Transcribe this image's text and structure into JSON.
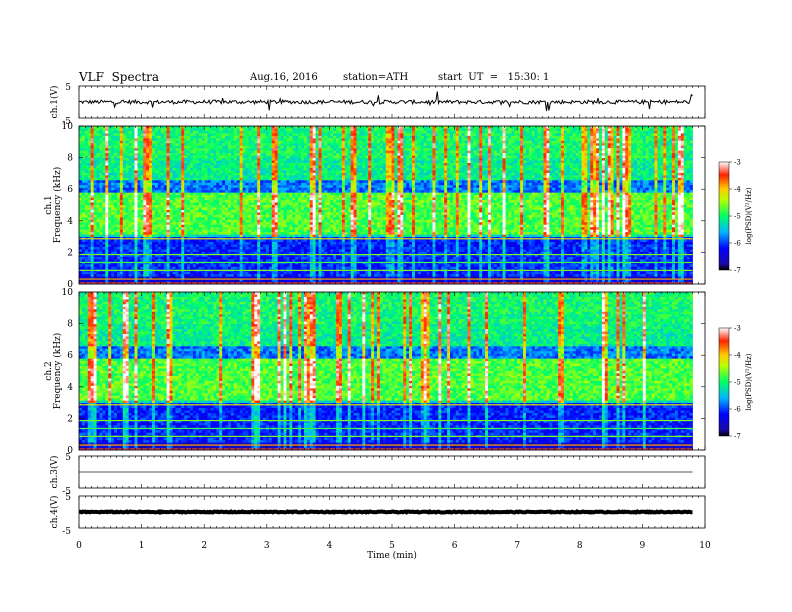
{
  "header": {
    "title": "VLF  Spectra",
    "date": "Aug.16, 2016",
    "station": "station=ATH",
    "start": "start  UT  =   15:30: 1"
  },
  "chart_data": [
    {
      "type": "line",
      "title": "",
      "ylabel": "ch.1(V)",
      "ylim": [
        -5,
        5
      ],
      "ytick_labels": [
        "5",
        "-5"
      ],
      "trace_mean": 0,
      "trace_noise": 0.6,
      "spikes": true
    },
    {
      "type": "heatmap",
      "ylabel": "Frequency  (kHz)",
      "channel_label": "ch.1",
      "xlim": [
        0,
        9.8
      ],
      "ylim": [
        0,
        10
      ],
      "ytick_labels": [
        "0",
        "2",
        "4",
        "6",
        "8",
        "10"
      ],
      "colorbar": {
        "label": "log(PSD)(V²/Hz)",
        "range": [
          -7,
          -3
        ],
        "tick_labels": [
          "-3",
          "-4",
          "-5",
          "-6",
          "-7"
        ]
      }
    },
    {
      "type": "heatmap",
      "ylabel": "Frequency  (kHz)",
      "channel_label": "ch.2",
      "xlim": [
        0,
        9.8
      ],
      "ylim": [
        0,
        10
      ],
      "ytick_labels": [
        "0",
        "2",
        "4",
        "6",
        "8",
        "10"
      ],
      "colorbar": {
        "label": "log(PSD)(V²/Hz)",
        "range": [
          -7,
          -3
        ],
        "tick_labels": [
          "-3",
          "-4",
          "-5",
          "-6",
          "-7"
        ]
      }
    },
    {
      "type": "line",
      "ylabel": "ch.3(V)",
      "ylim": [
        -5,
        5
      ],
      "ytick_labels": [
        "5",
        "-5"
      ],
      "trace_mean": 0,
      "trace_noise": 0
    },
    {
      "type": "line",
      "ylabel": "ch.4(V)",
      "ylim": [
        -5,
        5
      ],
      "ytick_labels": [
        "5",
        "-5"
      ],
      "trace_mean": 0,
      "trace_noise": 0.15
    }
  ],
  "xaxis": {
    "label": "Time  (min)",
    "xlim": [
      0,
      10
    ],
    "tick_labels": [
      "0",
      "1",
      "2",
      "3",
      "4",
      "5",
      "6",
      "7",
      "8",
      "9",
      "10"
    ]
  }
}
